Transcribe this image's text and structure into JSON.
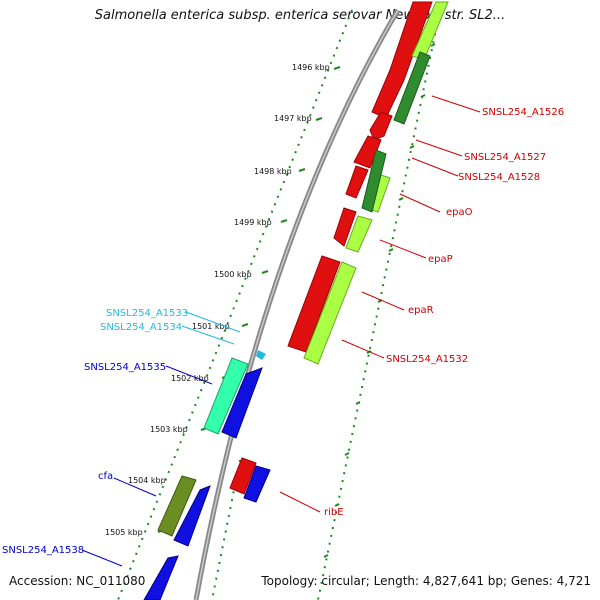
{
  "title": "Salmonella enterica subsp. enterica serovar Newport str. SL2...",
  "footer": {
    "accession": "Accession: NC_011080",
    "stats": "Topology: circular; Length: 4,827,641 bp; Genes: 4,721"
  },
  "ticks": [
    "1496 kbp",
    "1497 kbp",
    "1498 kbp",
    "1499 kbp",
    "1500 kbp",
    "1501 kbp",
    "1502 kbp",
    "1503 kbp",
    "1504 kbp",
    "1505 kbp"
  ],
  "gene_labels": {
    "a1526": "SNSL254_A1526",
    "a1527": "SNSL254_A1527",
    "a1528": "SNSL254_A1528",
    "epaO": "epaO",
    "epaP": "epaP",
    "epaR": "epaR",
    "a1532": "SNSL254_A1532",
    "a1533": "SNSL254_A1533",
    "a1534": "SNSL254_A1534",
    "a1535": "SNSL254_A1535",
    "cfa": "cfa",
    "a1538": "SNSL254_A1538",
    "ribE": "ribE"
  },
  "colors": {
    "red": "#e01010",
    "dark_red": "#9a0000",
    "lime": "#aaff44",
    "dark_green": "#2e8b2e",
    "blue": "#1010e0",
    "cyan": "#33ffaa",
    "olive": "#6b8e23",
    "tick_green": "#1e8a1e",
    "label_red": "#cc0000",
    "label_cyan": "#22b8e0",
    "label_blue": "#0000cc"
  }
}
